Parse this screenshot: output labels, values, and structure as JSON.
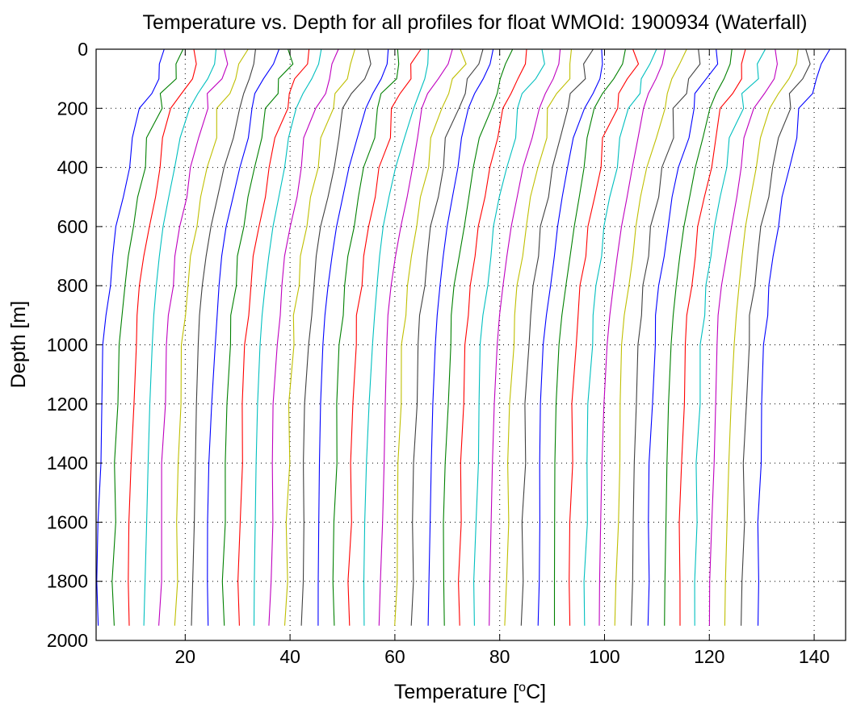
{
  "chart_data": {
    "type": "line",
    "title": "Temperature vs. Depth for all profiles for float WMOId: 1900934 (Waterfall)",
    "xlabel": "Temperature [",
    "xlabel_sup": "o",
    "xlabel_suffix": "C]",
    "ylabel": "Depth [m]",
    "xlim": [
      3,
      146
    ],
    "ylim": [
      0,
      2000
    ],
    "y_reversed": true,
    "grid": "dotted",
    "xticks": [
      "20",
      "40",
      "60",
      "80",
      "100",
      "120",
      "140"
    ],
    "xtick_values": [
      20,
      40,
      60,
      80,
      100,
      120,
      140
    ],
    "yticks": [
      "0",
      "200",
      "400",
      "600",
      "800",
      "1000",
      "1200",
      "1400",
      "1600",
      "1800",
      "2000"
    ],
    "ytick_values": [
      0,
      200,
      400,
      600,
      800,
      1000,
      1200,
      1400,
      1600,
      1800,
      2000
    ],
    "color_cycle": [
      "#0000ff",
      "#008000",
      "#ff0000",
      "#00bfbf",
      "#bf00bf",
      "#bfbf00",
      "#404040"
    ],
    "profile_spacing": 1,
    "profile_offsets": [
      0,
      3,
      6,
      9,
      12,
      15,
      18,
      21,
      24,
      27,
      30,
      33,
      36,
      39,
      42,
      45,
      48,
      51,
      54,
      57,
      60,
      63,
      66,
      69,
      72,
      75,
      78,
      81,
      84,
      87,
      90,
      93,
      96,
      99,
      102,
      105,
      108,
      111,
      114,
      117,
      120,
      123,
      126
    ],
    "profile_depths": [
      0,
      50,
      100,
      150,
      200,
      300,
      400,
      500,
      600,
      700,
      800,
      900,
      1000,
      1200,
      1400,
      1600,
      1800,
      1950
    ],
    "profile_base_temps": [
      16.2,
      15.8,
      14.6,
      13.0,
      11.8,
      10.4,
      9.2,
      8.1,
      7.0,
      6.2,
      5.5,
      4.9,
      4.5,
      4.0,
      3.7,
      3.5,
      3.3,
      3.2
    ]
  }
}
